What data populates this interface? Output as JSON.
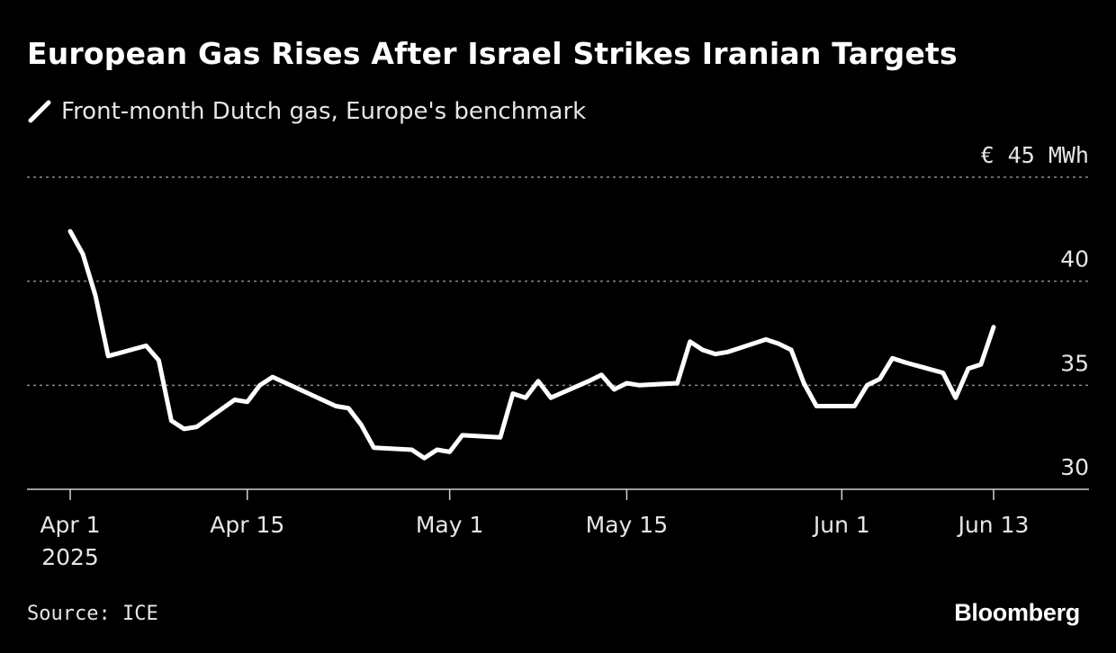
{
  "header": {
    "title": "European Gas Rises After Israel Strikes Iranian Targets"
  },
  "legend": {
    "label": "Front-month Dutch gas, Europe's benchmark",
    "icon": "white-line-swatch"
  },
  "footer": {
    "source": "Source: ICE",
    "brand": "Bloomberg"
  },
  "colors": {
    "background": "#000000",
    "line": "#ffffff",
    "grid": "#8a8a8a",
    "text": "#e6e6e6"
  },
  "chart_data": {
    "type": "line",
    "title": "European Gas Rises After Israel Strikes Iranian Targets",
    "xlabel": "",
    "ylabel": "€ 45 MWh",
    "y_unit_label": "€ 45 MWh",
    "ylim": [
      30,
      45
    ],
    "y_ticks": [
      {
        "value": 45,
        "label": "€ 45 MWh"
      },
      {
        "value": 40,
        "label": "40"
      },
      {
        "value": 35,
        "label": "35"
      },
      {
        "value": 30,
        "label": "30"
      }
    ],
    "x_range": [
      "2025-04-01",
      "2025-06-13"
    ],
    "x_ticks": [
      {
        "date": "2025-04-01",
        "label": "Apr 1",
        "sublabel": "2025"
      },
      {
        "date": "2025-04-15",
        "label": "Apr 15"
      },
      {
        "date": "2025-05-01",
        "label": "May 1"
      },
      {
        "date": "2025-05-15",
        "label": "May 15"
      },
      {
        "date": "2025-06-01",
        "label": "Jun 1"
      },
      {
        "date": "2025-06-13",
        "label": "Jun 13"
      }
    ],
    "grid": true,
    "series": [
      {
        "name": "Front-month Dutch gas, Europe's benchmark",
        "x": [
          "2025-04-01",
          "2025-04-02",
          "2025-04-03",
          "2025-04-04",
          "2025-04-07",
          "2025-04-08",
          "2025-04-09",
          "2025-04-10",
          "2025-04-11",
          "2025-04-14",
          "2025-04-15",
          "2025-04-16",
          "2025-04-17",
          "2025-04-22",
          "2025-04-23",
          "2025-04-24",
          "2025-04-25",
          "2025-04-28",
          "2025-04-29",
          "2025-04-30",
          "2025-05-01",
          "2025-05-02",
          "2025-05-05",
          "2025-05-06",
          "2025-05-07",
          "2025-05-08",
          "2025-05-09",
          "2025-05-12",
          "2025-05-13",
          "2025-05-14",
          "2025-05-15",
          "2025-05-16",
          "2025-05-19",
          "2025-05-20",
          "2025-05-21",
          "2025-05-22",
          "2025-05-23",
          "2025-05-26",
          "2025-05-27",
          "2025-05-28",
          "2025-05-29",
          "2025-05-30",
          "2025-06-02",
          "2025-06-03",
          "2025-06-04",
          "2025-06-05",
          "2025-06-06",
          "2025-06-09",
          "2025-06-10",
          "2025-06-11",
          "2025-06-12",
          "2025-06-13"
        ],
        "values": [
          42.4,
          41.3,
          39.3,
          36.4,
          36.9,
          36.2,
          33.3,
          32.9,
          33.0,
          34.3,
          34.2,
          35.0,
          35.4,
          34.0,
          33.9,
          33.1,
          32.0,
          31.9,
          31.5,
          31.9,
          31.8,
          32.6,
          32.5,
          34.6,
          34.4,
          35.2,
          34.4,
          35.2,
          35.5,
          34.8,
          35.1,
          35.0,
          35.1,
          37.1,
          36.7,
          36.5,
          36.6,
          37.2,
          37.0,
          36.7,
          35.1,
          34.0,
          34.0,
          35.0,
          35.3,
          36.3,
          36.1,
          35.6,
          34.4,
          35.8,
          36.0,
          37.8
        ]
      }
    ]
  }
}
